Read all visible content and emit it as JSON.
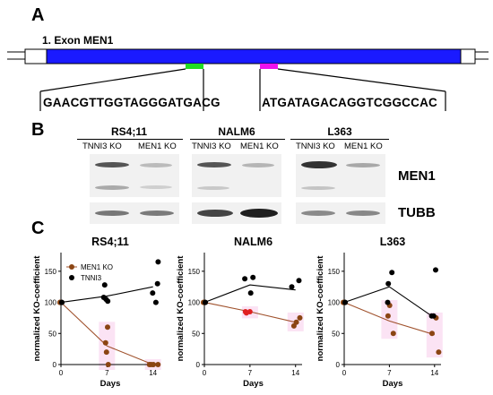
{
  "panel_a": {
    "letter": "A",
    "exon_label": "1. Exon MEN1",
    "guide_left": "GAACGTTGGTAGGGATGACG",
    "guide_right": "ATGATAGACAGGTCGGCCAC",
    "colors": {
      "exon": "#1a1aff",
      "guide_left": "#22dd22",
      "guide_right": "#ee11ee"
    }
  },
  "panel_b": {
    "letter": "B",
    "cell_lines": [
      {
        "name": "RS4;11",
        "lanes": [
          "TNNI3 KO",
          "MEN1 KO"
        ]
      },
      {
        "name": "NALM6",
        "lanes": [
          "TNNI3 KO",
          "MEN1 KO"
        ]
      },
      {
        "name": "L363",
        "lanes": [
          "TNNI3 KO",
          "MEN1 KO"
        ]
      }
    ],
    "blot_labels": [
      "MEN1",
      "TUBB"
    ]
  },
  "panel_c": {
    "letter": "C",
    "ylabel": "normalized KO-coefficient",
    "xlabel": "Days",
    "legend": [
      "MEN1 KO",
      "TNNI3"
    ]
  },
  "chart_data": [
    {
      "type": "scatter",
      "title": "RS4;11",
      "xlabel": "Days",
      "ylabel": "normalized KO-coefficient",
      "x_ticks": [
        0,
        7,
        14
      ],
      "y_ticks": [
        0,
        50,
        100,
        150
      ],
      "xlim": [
        0,
        15
      ],
      "ylim": [
        0,
        180
      ],
      "legend": "top-left",
      "series": [
        {
          "name": "MEN1 KO",
          "color": "#8b4513",
          "points": [
            [
              0,
              100
            ],
            [
              0,
              100
            ],
            [
              0,
              100
            ],
            [
              7,
              60
            ],
            [
              7,
              35
            ],
            [
              7,
              20
            ],
            [
              7,
              0
            ],
            [
              14,
              0
            ],
            [
              14,
              0
            ],
            [
              14,
              0
            ],
            [
              14,
              0
            ]
          ],
          "trend": [
            [
              0,
              100
            ],
            [
              7,
              30
            ],
            [
              14,
              0
            ]
          ]
        },
        {
          "name": "TNNI3",
          "color": "#000000",
          "points": [
            [
              0,
              100
            ],
            [
              0,
              100
            ],
            [
              7,
              128
            ],
            [
              7,
              105
            ],
            [
              7,
              108
            ],
            [
              7,
              102
            ],
            [
              14,
              165
            ],
            [
              14,
              130
            ],
            [
              14,
              115
            ],
            [
              14,
              100
            ]
          ],
          "trend": [
            [
              0,
              100
            ],
            [
              7,
              110
            ],
            [
              14,
              125
            ]
          ]
        }
      ]
    },
    {
      "type": "scatter",
      "title": "NALM6",
      "xlabel": "Days",
      "ylabel": "normalized KO-coefficient",
      "x_ticks": [
        0,
        7,
        14
      ],
      "y_ticks": [
        0,
        50,
        100,
        150
      ],
      "xlim": [
        0,
        15
      ],
      "ylim": [
        0,
        180
      ],
      "series": [
        {
          "name": "MEN1 KO",
          "color": "#8b4513",
          "points": [
            [
              0,
              100
            ],
            [
              0,
              100
            ],
            [
              7,
              85
            ],
            [
              7,
              83
            ],
            [
              7,
              85
            ],
            [
              14,
              75
            ],
            [
              14,
              62
            ],
            [
              14,
              68
            ]
          ],
          "trend": [
            [
              0,
              100
            ],
            [
              7,
              85
            ],
            [
              14,
              68
            ]
          ]
        },
        {
          "name": "TNNI3",
          "color": "#000000",
          "points": [
            [
              0,
              100
            ],
            [
              0,
              100
            ],
            [
              7,
              140
            ],
            [
              7,
              138
            ],
            [
              7,
              115
            ],
            [
              14,
              135
            ],
            [
              14,
              125
            ]
          ],
          "trend": [
            [
              0,
              100
            ],
            [
              7,
              128
            ],
            [
              14,
              120
            ]
          ]
        }
      ]
    },
    {
      "type": "scatter",
      "title": "L363",
      "xlabel": "Days",
      "ylabel": "normalized KO-coefficient",
      "x_ticks": [
        0,
        7,
        14
      ],
      "y_ticks": [
        0,
        50,
        100,
        150
      ],
      "xlim": [
        0,
        15
      ],
      "ylim": [
        0,
        180
      ],
      "series": [
        {
          "name": "MEN1 KO",
          "color": "#8b4513",
          "points": [
            [
              0,
              100
            ],
            [
              0,
              100
            ],
            [
              7,
              95
            ],
            [
              7,
              78
            ],
            [
              7,
              50
            ],
            [
              14,
              75
            ],
            [
              14,
              50
            ],
            [
              14,
              20
            ]
          ],
          "trend": [
            [
              0,
              100
            ],
            [
              7,
              70
            ],
            [
              14,
              48
            ]
          ]
        },
        {
          "name": "TNNI3",
          "color": "#000000",
          "points": [
            [
              0,
              100
            ],
            [
              0,
              100
            ],
            [
              7,
              148
            ],
            [
              7,
              130
            ],
            [
              7,
              100
            ],
            [
              14,
              152
            ],
            [
              14,
              78
            ],
            [
              14,
              78
            ]
          ],
          "trend": [
            [
              0,
              100
            ],
            [
              7,
              125
            ],
            [
              14,
              75
            ]
          ]
        }
      ]
    }
  ]
}
